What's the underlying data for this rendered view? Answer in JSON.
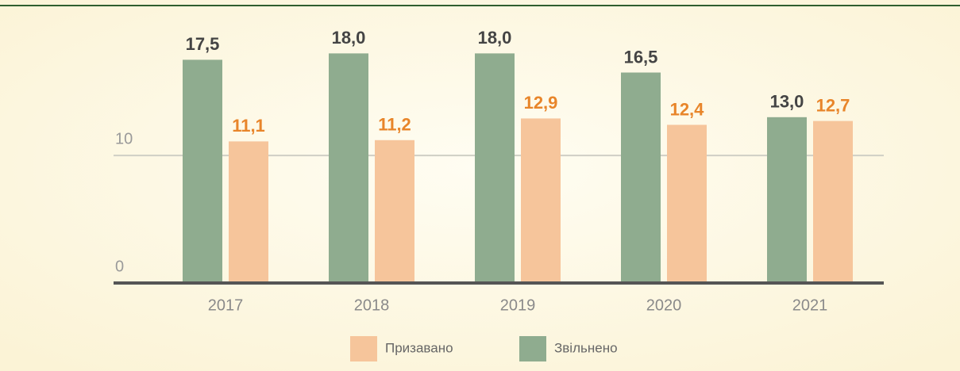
{
  "chart_data": {
    "type": "bar",
    "categories": [
      "2017",
      "2018",
      "2019",
      "2020",
      "2021"
    ],
    "series": [
      {
        "name": "Звільнено",
        "color": "#8fac8f",
        "label_color": "#444444",
        "values": [
          17.5,
          18.0,
          18.0,
          16.5,
          13.0
        ],
        "value_labels": [
          "17,5",
          "18,0",
          "18,0",
          "16,5",
          "13,0"
        ]
      },
      {
        "name": "Призавано",
        "color": "#f6c59b",
        "label_color": "#e8852a",
        "values": [
          11.1,
          11.2,
          12.9,
          12.4,
          12.7
        ],
        "value_labels": [
          "11,1",
          "11,2",
          "12,9",
          "12,4",
          "12,7"
        ]
      }
    ],
    "ylim": [
      0,
      22
    ],
    "yticks": [
      0,
      10
    ],
    "grid": true
  }
}
